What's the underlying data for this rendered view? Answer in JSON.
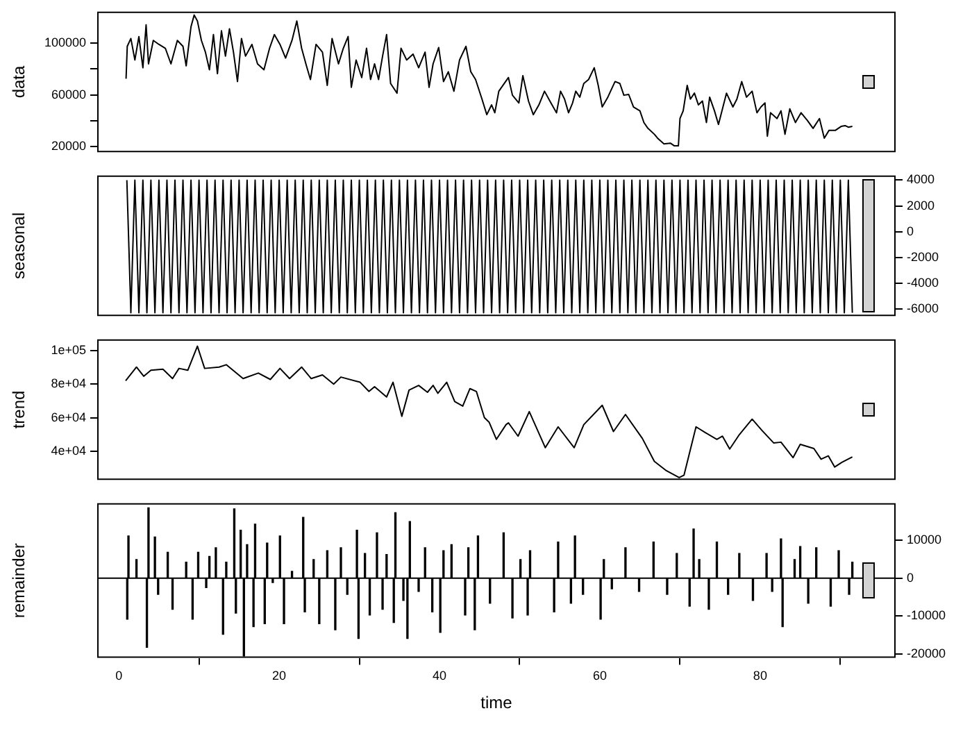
{
  "chart_data": [
    {
      "type": "line",
      "ylabel": "data",
      "xlim": [
        -2.7,
        96.9
      ],
      "ylim": [
        15500,
        124500
      ],
      "yticks": [
        20000,
        {
          "value": 40000,
          "label": null
        },
        60000,
        {
          "value": 80000,
          "label": null
        },
        100000
      ],
      "tick_labels": "y",
      "grid": false,
      "series": [
        {
          "color": "#000000",
          "x": [
            0.9,
            1.05,
            1.5,
            2.0,
            2.5,
            3.0,
            3.4,
            3.7,
            4.3,
            5.0,
            5.8,
            6.5,
            7.3,
            8.0,
            8.4,
            9.0,
            9.4,
            9.8,
            10.3,
            10.8,
            11.3,
            11.8,
            12.3,
            12.8,
            13.3,
            13.8,
            14.3,
            14.8,
            15.3,
            15.8,
            16.6,
            17.3,
            18.1,
            18.8,
            19.4,
            20.1,
            20.8,
            21.6,
            22.2,
            22.8,
            23.4,
            23.9,
            24.6,
            25.4,
            26.0,
            26.6,
            27.4,
            28.0,
            28.6,
            29.0,
            29.6,
            30.3,
            30.9,
            31.4,
            31.9,
            32.4,
            32.9,
            33.4,
            33.9,
            34.7,
            35.2,
            35.9,
            36.7,
            37.4,
            38.2,
            38.7,
            39.2,
            39.9,
            40.5,
            41.1,
            41.8,
            42.5,
            43.3,
            43.9,
            44.5,
            45.3,
            45.9,
            46.5,
            46.9,
            47.4,
            48.6,
            49.1,
            49.9,
            50.4,
            51.1,
            51.7,
            52.4,
            53.1,
            53.9,
            54.6,
            55.1,
            55.6,
            56.1,
            56.6,
            57.0,
            57.5,
            58.0,
            58.6,
            59.3,
            59.8,
            60.3,
            61.0,
            61.9,
            62.5,
            63.0,
            63.6,
            64.2,
            65.0,
            65.5,
            66.0,
            66.8,
            67.2,
            68.0,
            68.8,
            69.3,
            69.8,
            70.0,
            70.4,
            70.9,
            71.3,
            71.8,
            72.3,
            72.8,
            73.3,
            73.7,
            74.3,
            74.8,
            75.3,
            75.8,
            76.6,
            77.1,
            77.7,
            78.3,
            79.0,
            79.6,
            80.1,
            80.6,
            80.9,
            81.3,
            82.1,
            82.6,
            83.1,
            83.7,
            84.4,
            85.1,
            85.9,
            86.6,
            87.4,
            88.0,
            88.6,
            89.4,
            90.1,
            90.6,
            91.0,
            91.5
          ],
          "values": [
            72500,
            97600,
            103700,
            87000,
            105200,
            81000,
            114300,
            84000,
            102200,
            99100,
            96100,
            84000,
            102200,
            97600,
            82500,
            112800,
            121900,
            117300,
            102200,
            93100,
            79400,
            106700,
            76400,
            109700,
            90000,
            111200,
            93100,
            70300,
            103700,
            90000,
            99100,
            84000,
            79400,
            96100,
            106700,
            99100,
            88500,
            102200,
            117300,
            96100,
            82500,
            71900,
            99100,
            93100,
            67300,
            103700,
            84000,
            96100,
            105200,
            65800,
            87000,
            73400,
            96100,
            71900,
            84000,
            71900,
            90000,
            106700,
            68800,
            61300,
            96100,
            87000,
            91600,
            81000,
            93100,
            65800,
            84000,
            96700,
            70300,
            77900,
            62800,
            87000,
            97600,
            77900,
            71900,
            56700,
            44600,
            52200,
            46100,
            62800,
            73400,
            59700,
            53700,
            74900,
            55200,
            44600,
            52200,
            62800,
            53700,
            46100,
            62800,
            56700,
            46100,
            53700,
            62800,
            58200,
            68800,
            71900,
            81000,
            67300,
            50600,
            58200,
            70300,
            68800,
            59700,
            60300,
            50600,
            47600,
            38500,
            34000,
            29400,
            26400,
            21900,
            22500,
            20400,
            20400,
            41600,
            47600,
            67300,
            56700,
            61300,
            52200,
            55200,
            38500,
            58200,
            47600,
            37000,
            49100,
            61300,
            50600,
            56700,
            70300,
            58200,
            62800,
            46100,
            50600,
            53700,
            27900,
            46100,
            41600,
            47600,
            29400,
            49100,
            38500,
            46100,
            40000,
            34000,
            41600,
            26400,
            32500,
            32500,
            35500,
            36100,
            34900,
            35500
          ]
        }
      ]
    },
    {
      "type": "line",
      "ylabel": "seasonal",
      "xlim": [
        -2.7,
        96.9
      ],
      "y2lim": [
        -6550,
        4360
      ],
      "y2ticks": [
        -6000,
        -4000,
        -2000,
        0,
        2000,
        4000
      ],
      "tick_labels": "y",
      "grid": false,
      "series": [
        {
          "color": "#000000",
          "axis": "y2",
          "x": [
            1,
            1.5,
            2,
            2.5,
            3,
            3.5,
            4,
            4.5,
            5,
            5.5,
            6,
            6.5,
            7,
            7.5,
            8,
            8.5,
            9,
            9.5,
            10,
            10.5,
            11,
            11.5,
            12,
            12.5,
            13,
            13.5,
            14,
            14.5,
            15,
            15.5,
            16,
            16.5,
            17,
            17.5,
            18,
            18.5,
            19,
            19.5,
            20,
            20.5,
            21,
            21.5,
            22,
            22.5,
            23,
            23.5,
            24,
            24.5,
            25,
            25.5,
            26,
            26.5,
            27,
            27.5,
            28,
            28.5,
            29,
            29.5,
            30,
            30.5,
            31,
            31.5,
            32,
            32.5,
            33,
            33.5,
            34,
            34.5,
            35,
            35.5,
            36,
            36.5,
            37,
            37.5,
            38,
            38.5,
            39,
            39.5,
            40,
            40.5,
            41,
            41.5,
            42,
            42.5,
            43,
            43.5,
            44,
            44.5,
            45,
            45.5,
            46,
            46.5,
            47,
            47.5,
            48,
            48.5,
            49,
            49.5,
            50,
            50.5,
            51,
            51.5,
            52,
            52.5,
            53,
            53.5,
            54,
            54.5,
            55,
            55.5,
            56,
            56.5,
            57,
            57.5,
            58,
            58.5,
            59,
            59.5,
            60,
            60.5,
            61,
            61.5,
            62,
            62.5,
            63,
            63.5,
            64,
            64.5,
            65,
            65.5,
            66,
            66.5,
            67,
            67.5,
            68,
            68.5,
            69,
            69.5,
            70,
            70.5,
            71,
            71.5,
            72,
            72.5,
            73,
            73.5,
            74,
            74.5,
            75,
            75.5,
            76,
            76.5,
            77,
            77.5,
            78,
            78.5,
            79,
            79.5,
            80,
            80.5,
            81,
            81.5,
            82,
            82.5,
            83,
            83.5,
            84,
            84.5,
            85,
            85.5,
            86,
            86.5,
            87,
            87.5,
            88,
            88.5,
            89,
            89.5,
            90,
            90.5,
            91,
            91.5
          ],
          "values": [
            4000,
            -6300,
            4000,
            -6300,
            4000,
            -6300,
            4000,
            -6300,
            4000,
            -6300,
            4000,
            -6300,
            4000,
            -6300,
            4000,
            -6300,
            4000,
            -6300,
            4000,
            -6300,
            4000,
            -6300,
            4000,
            -6300,
            4000,
            -6300,
            4000,
            -6300,
            4000,
            -6300,
            4000,
            -6300,
            4000,
            -6300,
            4000,
            -6300,
            4000,
            -6300,
            4000,
            -6300,
            4000,
            -6300,
            4000,
            -6300,
            4000,
            -6300,
            4000,
            -6300,
            4000,
            -6300,
            4000,
            -6300,
            4000,
            -6300,
            4000,
            -6300,
            4000,
            -6300,
            4000,
            -6300,
            4000,
            -6300,
            4000,
            -6300,
            4000,
            -6300,
            4000,
            -6300,
            4000,
            -6300,
            4000,
            -6300,
            4000,
            -6300,
            4000,
            -6300,
            4000,
            -6300,
            4000,
            -6300,
            4000,
            -6300,
            4000,
            -6300,
            4000,
            -6300,
            4000,
            -6300,
            4000,
            -6300,
            4000,
            -6300,
            4000,
            -6300,
            4000,
            -6300,
            4000,
            -6300,
            4000,
            -6300,
            4000,
            -6300,
            4000,
            -6300,
            4000,
            -6300,
            4000,
            -6300,
            4000,
            -6300,
            4000,
            -6300,
            4000,
            -6300,
            4000,
            -6300,
            4000,
            -6300,
            4000,
            -6300,
            4000,
            -6300,
            4000,
            -6300,
            4000,
            -6300,
            4000,
            -6300,
            4000,
            -6300,
            4000,
            -6300,
            4000,
            -6300,
            4000,
            -6300,
            4000,
            -6300,
            4000,
            -6300,
            4000,
            -6300,
            4000,
            -6300,
            4000,
            -6300,
            4000,
            -6300,
            4000,
            -6300,
            4000,
            -6300,
            4000,
            -6300,
            4000,
            -6300,
            4000,
            -6300,
            4000,
            -6300,
            4000,
            -6300,
            4000,
            -6300,
            4000,
            -6300,
            4000,
            -6300,
            4000,
            -6300,
            4000,
            -6300,
            4000,
            -6300,
            4000,
            -6300,
            4000,
            -6300,
            4000,
            -6300,
            4000,
            -6300
          ]
        }
      ]
    },
    {
      "type": "line",
      "ylabel": "trend",
      "xlim": [
        -2.7,
        96.9
      ],
      "ylim": [
        22700,
        106900
      ],
      "yticks": [
        {
          "value": 40000,
          "label": "4e+04"
        },
        {
          "value": 60000,
          "label": "6e+04"
        },
        {
          "value": 80000,
          "label": "8e+04"
        },
        {
          "value": 100000,
          "label": "1e+05"
        }
      ],
      "tick_labels": "y",
      "grid": false,
      "series": [
        {
          "color": "#000000",
          "x": [
            0.85,
            2.2,
            3.1,
            4.0,
            5.5,
            6.7,
            7.5,
            8.6,
            9.8,
            10.7,
            12.5,
            13.4,
            15.5,
            17.4,
            18.9,
            20.1,
            21.3,
            22.8,
            24.0,
            25.4,
            26.8,
            27.7,
            30.1,
            31.2,
            31.9,
            33.4,
            34.2,
            35.3,
            36.2,
            37.4,
            38.5,
            39.2,
            39.8,
            40.9,
            41.9,
            42.9,
            43.8,
            44.6,
            45.6,
            46.2,
            47.1,
            48.3,
            48.6,
            49.8,
            51.2,
            53.2,
            54.8,
            56.8,
            58.0,
            60.3,
            61.7,
            63.2,
            65.3,
            66.8,
            68.3,
            69.9,
            70.5,
            72.0,
            73.2,
            74.6,
            75.3,
            76.2,
            77.4,
            79.0,
            80.2,
            81.7,
            82.6,
            84.1,
            85.0,
            86.7,
            87.6,
            88.5,
            89.3,
            90.2,
            91.5
          ],
          "values": [
            82100,
            90300,
            84800,
            88400,
            89000,
            83400,
            89500,
            88400,
            102800,
            89500,
            90300,
            91700,
            83400,
            86700,
            82900,
            89500,
            83400,
            90300,
            83400,
            85600,
            80100,
            84300,
            81200,
            75700,
            78500,
            72400,
            81200,
            60800,
            76500,
            79300,
            75200,
            79300,
            74600,
            81200,
            69600,
            66900,
            77400,
            75700,
            60000,
            57200,
            47000,
            55800,
            56900,
            48900,
            63600,
            42000,
            54500,
            42000,
            55800,
            67400,
            51700,
            61900,
            47600,
            33800,
            28200,
            24100,
            25500,
            54500,
            50900,
            47000,
            48900,
            41200,
            49800,
            59100,
            52500,
            44800,
            45300,
            36000,
            44000,
            41500,
            35100,
            37100,
            30400,
            33200,
            36500
          ]
        }
      ]
    },
    {
      "type": "bar",
      "ylabel": "remainder",
      "xlabel": "time",
      "xlim": [
        -2.7,
        96.9
      ],
      "xticks": [
        0,
        20,
        40,
        60,
        80
      ],
      "y2lim": [
        -21000,
        19700
      ],
      "y2ticks": [
        -20000,
        -10000,
        0,
        10000
      ],
      "grid": false,
      "ref_lines": [
        {
          "axis": "y2",
          "value": 0,
          "color": "#000000"
        }
      ],
      "series": [
        {
          "color": "#000000",
          "axis": "y2",
          "x": [
            1.05,
            1.2,
            2.2,
            3.5,
            3.7,
            4.5,
            4.9,
            6.1,
            6.7,
            8.4,
            9.2,
            9.9,
            10.9,
            11.3,
            12.1,
            13.0,
            13.4,
            14.4,
            14.6,
            15.2,
            15.6,
            16.0,
            16.8,
            17.0,
            18.2,
            18.5,
            19.2,
            20.1,
            20.6,
            21.6,
            23.0,
            23.2,
            24.3,
            25.0,
            26.0,
            27.0,
            27.7,
            28.5,
            29.7,
            29.9,
            30.7,
            31.3,
            32.2,
            32.9,
            33.4,
            34.3,
            34.5,
            35.5,
            36.0,
            36.3,
            37.4,
            38.2,
            39.1,
            40.1,
            40.5,
            41.5,
            43.2,
            43.6,
            44.4,
            44.8,
            46.3,
            48.0,
            49.1,
            50.1,
            51.0,
            51.3,
            52.6,
            54.3,
            54.8,
            56.4,
            56.9,
            57.9,
            60.1,
            60.5,
            61.5,
            63.2,
            64.9,
            66.7,
            68.4,
            69.6,
            71.2,
            71.7,
            72.4,
            73.6,
            74.6,
            76.0,
            77.4,
            79.1,
            80.8,
            81.5,
            82.6,
            82.8,
            84.3,
            85.0,
            86.0,
            87.0,
            88.8,
            89.8,
            91.1,
            91.5
          ],
          "values": [
            -10800,
            11100,
            4900,
            -18200,
            18500,
            10800,
            -4300,
            6800,
            -8200,
            4200,
            -10800,
            6800,
            -2500,
            5700,
            8000,
            -14800,
            4200,
            18200,
            -9200,
            12600,
            -20500,
            8800,
            -12800,
            14200,
            -12000,
            9200,
            -1200,
            11100,
            -12000,
            1800,
            16000,
            -8900,
            4900,
            -12000,
            7200,
            -13600,
            8000,
            -4300,
            12600,
            -15900,
            6500,
            -9700,
            11900,
            -8200,
            6200,
            -11700,
            17200,
            -5900,
            -15900,
            14900,
            -3500,
            8000,
            -8900,
            -14300,
            7200,
            8800,
            -9700,
            8000,
            -13600,
            11100,
            -6600,
            11900,
            -10500,
            4900,
            -9700,
            7200,
            null,
            -8900,
            9500,
            -6600,
            11100,
            -4300,
            -10800,
            4900,
            -2800,
            8000,
            -3500,
            9500,
            -4300,
            6500,
            -7400,
            12900,
            4900,
            -8200,
            9500,
            -4300,
            6500,
            -5900,
            6500,
            -3500,
            10300,
            -12800,
            4900,
            8300,
            -6600,
            8000,
            -7400,
            7200,
            -4300,
            4200
          ]
        }
      ]
    }
  ]
}
